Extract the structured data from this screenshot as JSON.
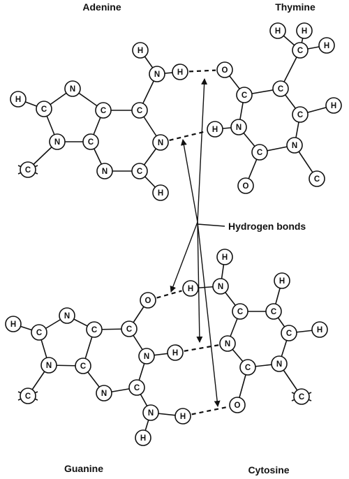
{
  "molecules": {
    "adenine": "Adenine",
    "thymine": "Thymine",
    "guanine": "Guanine",
    "cytosine": "Cytosine"
  },
  "annotation": {
    "hydrogen_bonds": "Hydrogen bonds"
  },
  "atom_symbols": {
    "H": "H",
    "C": "C",
    "N": "N",
    "O": "O"
  },
  "colors": {
    "ink": "#111111",
    "background": "#ffffff"
  }
}
